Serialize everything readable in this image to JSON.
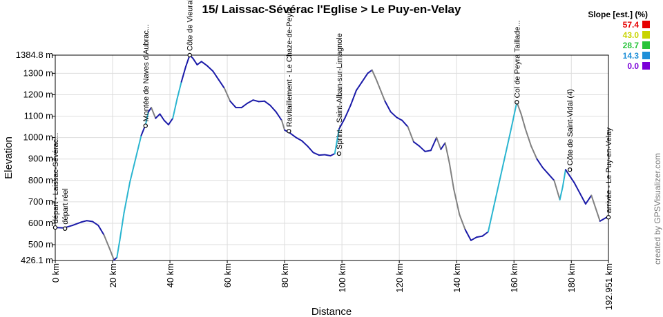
{
  "chart_data": {
    "type": "line",
    "title": "15/ Laissac-Sévérac l'Eglise > Le Puy-en-Velay",
    "xlabel": "Distance",
    "ylabel": "Elevation",
    "xlim": [
      0,
      192.951
    ],
    "ylim": [
      426.1,
      1384.8
    ],
    "y_ticks": [
      "426.1 m",
      "500 m",
      "600 m",
      "700 m",
      "800 m",
      "900 m",
      "1000 m",
      "1100 m",
      "1200 m",
      "1300 m",
      "1384.8 m"
    ],
    "y_tick_values": [
      426.1,
      500,
      600,
      700,
      800,
      900,
      1000,
      1100,
      1200,
      1300,
      1384.8
    ],
    "x_ticks": [
      "0 km",
      "20 km",
      "40 km",
      "60 km",
      "80 km",
      "100 km",
      "120 km",
      "140 km",
      "160 km",
      "180 km",
      "192.951 km"
    ],
    "x_tick_values": [
      0,
      20,
      40,
      60,
      80,
      100,
      120,
      140,
      160,
      180,
      192.951
    ],
    "grid": true,
    "series": [
      {
        "x": [
          0,
          3,
          6,
          9,
          11,
          13,
          15,
          17,
          19,
          20.5,
          21.5,
          22.5,
          24,
          26,
          28,
          30,
          31.5,
          32.5,
          33.5,
          35,
          36.5,
          38,
          39.5,
          41,
          42.5,
          44,
          45.5,
          46.9,
          48,
          49.5,
          51,
          53,
          55,
          57,
          59,
          61,
          63,
          65,
          67,
          69,
          71,
          73,
          75,
          77,
          79,
          80,
          82,
          84,
          86,
          88,
          90,
          92,
          94,
          96,
          97.5,
          99,
          101,
          103,
          105,
          107,
          109,
          110.5,
          112,
          113.5,
          115,
          117,
          119,
          121,
          123,
          125,
          127,
          129,
          131,
          133,
          134.5,
          136,
          137.5,
          139,
          141,
          143,
          145,
          147,
          149,
          151,
          153,
          155,
          157,
          159,
          161,
          162.5,
          164,
          166,
          168,
          170,
          172,
          174,
          176,
          177,
          178,
          179.5,
          181,
          183,
          185,
          187,
          188.5,
          190,
          192,
          192.951
        ],
        "y": [
          580,
          578,
          590,
          605,
          612,
          608,
          590,
          545,
          480,
          428,
          440,
          520,
          650,
          790,
          900,
          1010,
          1060,
          1120,
          1140,
          1090,
          1110,
          1080,
          1060,
          1090,
          1180,
          1260,
          1330,
          1384.8,
          1370,
          1340,
          1355,
          1335,
          1310,
          1270,
          1230,
          1170,
          1140,
          1140,
          1160,
          1175,
          1168,
          1170,
          1150,
          1120,
          1080,
          1035,
          1020,
          1000,
          985,
          960,
          930,
          918,
          920,
          915,
          925,
          1040,
          1090,
          1150,
          1220,
          1260,
          1300,
          1315,
          1270,
          1220,
          1170,
          1120,
          1095,
          1080,
          1050,
          980,
          960,
          935,
          940,
          1000,
          945,
          975,
          880,
          760,
          640,
          570,
          520,
          535,
          540,
          560,
          680,
          800,
          920,
          1040,
          1165,
          1110,
          1040,
          960,
          900,
          860,
          830,
          800,
          710,
          770,
          850,
          820,
          790,
          740,
          690,
          730,
          670,
          610,
          625,
          628
        ]
      }
    ],
    "waypoints": [
      {
        "x": 0,
        "y": 580,
        "label": "départ - Laissac-Sévérac..."
      },
      {
        "x": 3.4,
        "y": 575,
        "label": "départ réel"
      },
      {
        "x": 31.5,
        "y": 1055,
        "label": "Montée de Naves d'Aubrac..."
      },
      {
        "x": 46.9,
        "y": 1384.8,
        "label": "Côte de Vieurals"
      },
      {
        "x": 81.5,
        "y": 1030,
        "label": "Ravitaillement - Le Chaze-de-Peyre"
      },
      {
        "x": 99,
        "y": 925,
        "label": "Sprint - Saint-Alban-sur-Limagnole"
      },
      {
        "x": 161,
        "y": 1165,
        "label": "Col de Peyra Taillade..."
      },
      {
        "x": 179.5,
        "y": 850,
        "label": "Côte de Saint-Vidal (4)"
      },
      {
        "x": 192.951,
        "y": 628,
        "label": "arrivée - Le Puy-en-Velay"
      }
    ],
    "legend": {
      "title": "Slope [est.] (%)",
      "entries": [
        {
          "value": "57.4",
          "color": "#e60000"
        },
        {
          "value": "43.0",
          "color": "#c8d400"
        },
        {
          "value": "28.7",
          "color": "#27c43a"
        },
        {
          "value": "14.3",
          "color": "#1e8fd8"
        },
        {
          "value": "0.0",
          "color": "#7a00d8"
        }
      ]
    }
  },
  "credit": "created by GPSVisualizer.com",
  "colors": {
    "line_dark": "#1a1aa8",
    "line_grey": "#808080",
    "line_cyan": "#2ab5d0",
    "grid": "#dddddd"
  }
}
